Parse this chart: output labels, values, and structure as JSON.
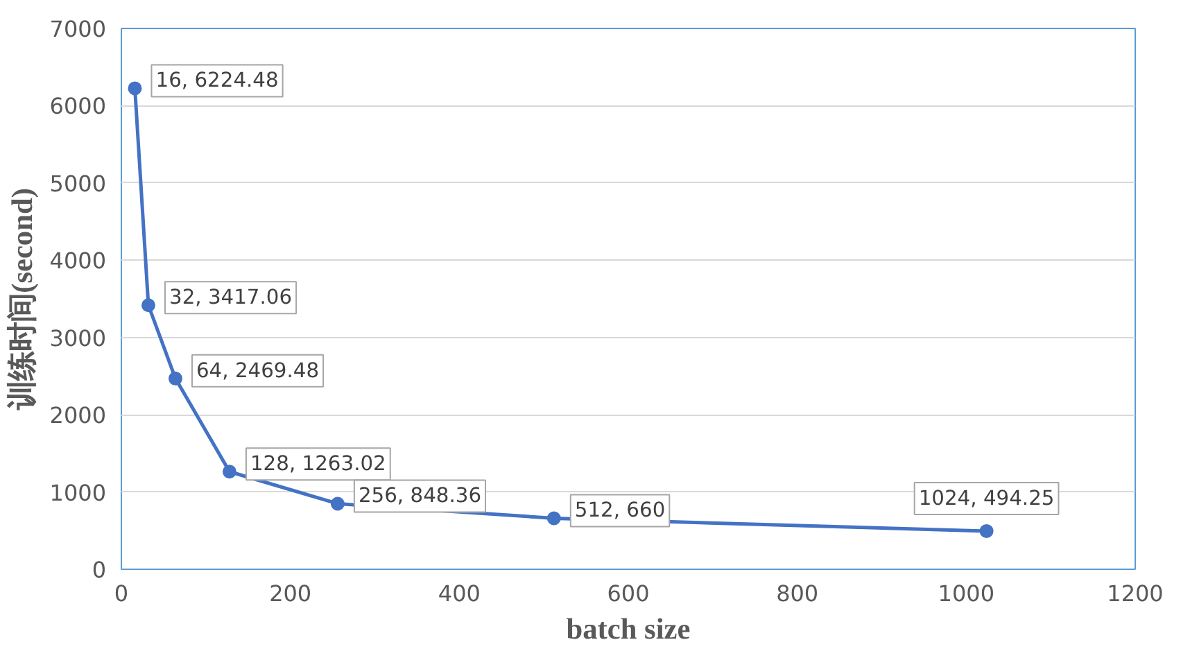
{
  "chart_data": {
    "type": "line",
    "xlabel": "batch size",
    "ylabel": "训练时间(second)",
    "x": [
      16,
      32,
      64,
      128,
      256,
      512,
      1024
    ],
    "series": [
      {
        "color": "#4472c4",
        "values": [
          6224.48,
          3417.06,
          2469.48,
          1263.02,
          848.36,
          660,
          494.25
        ],
        "value_labels": [
          "16, 6224.48",
          "32, 3417.06",
          "64, 2469.48",
          "128, 1263.02",
          "256, 848.36",
          "512, 660",
          "1024, 494.25"
        ]
      }
    ],
    "xlim": [
      0,
      1200
    ],
    "xticks": [
      0,
      200,
      400,
      600,
      800,
      1000,
      1200
    ],
    "ylim": [
      0,
      7000
    ],
    "yticks": [
      0,
      1000,
      2000,
      3000,
      4000,
      5000,
      6000,
      7000
    ],
    "grid": "y",
    "marker": "circle",
    "line_style": "solid"
  }
}
